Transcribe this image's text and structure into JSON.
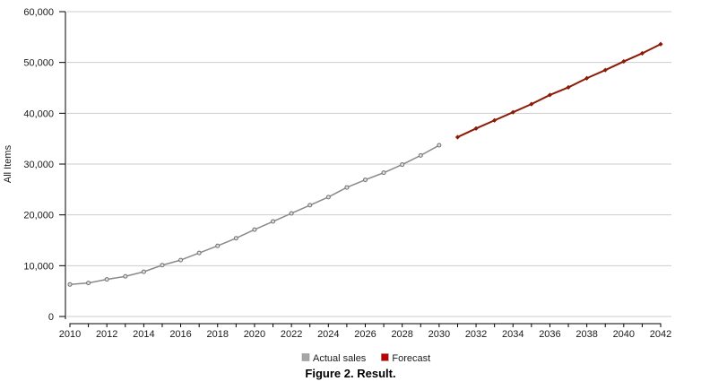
{
  "figure": {
    "label": "Figure 2.",
    "caption": "Result."
  },
  "chart_data": {
    "type": "line",
    "title": "",
    "xlabel": "",
    "ylabel": "All Items",
    "ylim": [
      0,
      60000
    ],
    "ytick_step": 10000,
    "xlim": [
      2010,
      2042
    ],
    "xtick_step": 1,
    "xtick_label_step": 2,
    "grid": "horizontal",
    "legend_position": "bottom-center",
    "colors": {
      "grid": "#cdcdcd",
      "axis": "#000000",
      "tick_text": "#1a1a1a"
    },
    "series": [
      {
        "name": "Actual sales",
        "marker": "circle",
        "line_color": "#8a8a8a",
        "marker_fill": "#e0e0e0",
        "marker_stroke": "#6f6f6f",
        "legend_color": "#a6a6a6",
        "x": [
          2010,
          2011,
          2012,
          2013,
          2014,
          2015,
          2016,
          2017,
          2018,
          2019,
          2020,
          2021,
          2022,
          2023,
          2024,
          2025,
          2026,
          2027,
          2028,
          2029,
          2030
        ],
        "values": [
          6300,
          6600,
          7300,
          7900,
          8800,
          10100,
          11100,
          12500,
          13900,
          15400,
          17100,
          18700,
          20300,
          21900,
          23500,
          25400,
          26900,
          28300,
          29900,
          31700,
          33700
        ]
      },
      {
        "name": "Forecast",
        "marker": "diamond",
        "line_color": "#8b1a06",
        "marker_fill": "#8b1a06",
        "marker_stroke": "#8b1a06",
        "legend_color": "#c00000",
        "x": [
          2031,
          2032,
          2033,
          2034,
          2035,
          2036,
          2037,
          2038,
          2039,
          2040,
          2041,
          2042
        ],
        "values": [
          35300,
          37000,
          38600,
          40200,
          41800,
          43600,
          45100,
          46900,
          48500,
          50200,
          51800,
          53600
        ]
      }
    ]
  }
}
